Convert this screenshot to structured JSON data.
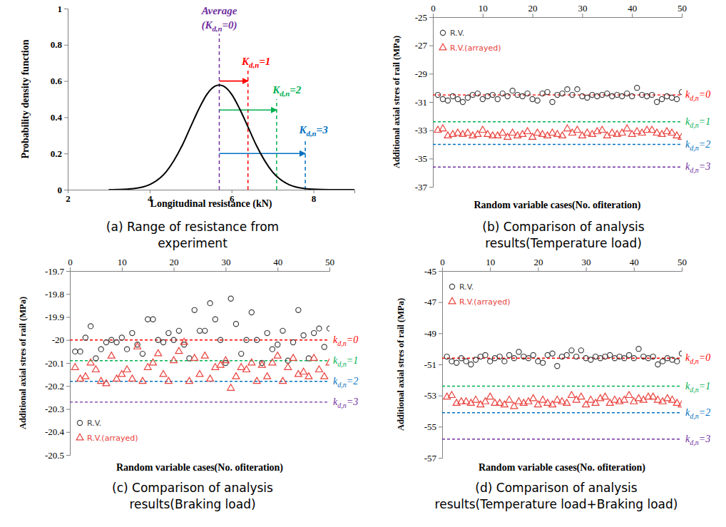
{
  "chart_data": [
    {
      "type": "line",
      "caption": [
        "(a) Range of resistance from",
        "experiment"
      ],
      "xlabel": "Longitudinal resistance (kN)",
      "ylabel": "Probability density function",
      "xlim": [
        2,
        9
      ],
      "xticks": [
        2,
        4,
        6,
        8
      ],
      "ylim": [
        0,
        1
      ],
      "yticks": [
        0,
        0.2,
        0.4,
        0.6,
        0.8,
        1
      ],
      "x": [
        3.0,
        3.2,
        3.6,
        4.0,
        4.4,
        4.8,
        5.0,
        5.2,
        5.4,
        5.6,
        5.7,
        5.8,
        6.0,
        6.2,
        6.4,
        6.6,
        7.0,
        7.4,
        7.8,
        8.2,
        8.6,
        9.0
      ],
      "series": [
        {
          "color": "#000000",
          "values": [
            0,
            0.001,
            0.006,
            0.028,
            0.098,
            0.247,
            0.347,
            0.445,
            0.527,
            0.572,
            0.578,
            0.572,
            0.527,
            0.445,
            0.347,
            0.247,
            0.098,
            0.028,
            0.006,
            0.001,
            0,
            0
          ]
        }
      ],
      "vlines": [
        {
          "x": 5.7,
          "y_top": 0.86,
          "color": "#7030a0"
        },
        {
          "x": 6.4,
          "y_top": 0.66,
          "color": "#ff0000"
        },
        {
          "x": 7.1,
          "y_top": 0.5,
          "color": "#00b050"
        },
        {
          "x": 7.8,
          "y_top": 0.28,
          "color": "#0070c0"
        }
      ],
      "arrows": [
        {
          "x_start": 5.7,
          "x_end": 6.4,
          "y": 0.6,
          "color": "#ff0000"
        },
        {
          "x_start": 5.7,
          "x_end": 7.1,
          "y": 0.44,
          "color": "#00b050"
        },
        {
          "x_start": 5.7,
          "x_end": 7.8,
          "y": 0.2,
          "color": "#0070c0"
        }
      ],
      "annotations": [
        {
          "text": "Average",
          "x": 5.7,
          "y": 0.97,
          "color": "#7030a0"
        },
        {
          "label": "(K",
          "label_sub": "d,n",
          "label_end": "=0)",
          "x": 5.7,
          "y": 0.89,
          "color": "#7030a0"
        },
        {
          "label": "K",
          "label_sub": "d,n",
          "label_end": "=1",
          "x": 6.6,
          "y": 0.69,
          "color": "#ff0000"
        },
        {
          "label": "K",
          "label_sub": "d,n",
          "label_end": "=2",
          "x": 7.35,
          "y": 0.53,
          "color": "#00b050"
        },
        {
          "label": "K",
          "label_sub": "d,n",
          "label_end": "=3",
          "x": 8.0,
          "y": 0.31,
          "color": "#0070c0"
        }
      ]
    },
    {
      "type": "scatter",
      "caption": [
        "(b) Comparison of analysis",
        "results(Temperature load)"
      ],
      "xlabel": "Random variable cases(No. ofiteration)",
      "ylabel": "Additional axial stres of rail (MPa)",
      "xlim": [
        0,
        50
      ],
      "xticks": [
        0,
        10,
        20,
        30,
        40,
        50
      ],
      "ylim": [
        -37,
        -25
      ],
      "yticks": [
        -37,
        -35,
        -33,
        -31,
        -29,
        -27,
        -25
      ],
      "legend": "upper left",
      "x": [
        1,
        2,
        3,
        4,
        5,
        6,
        7,
        8,
        9,
        10,
        11,
        12,
        13,
        14,
        15,
        16,
        17,
        18,
        19,
        20,
        21,
        22,
        23,
        24,
        25,
        26,
        27,
        28,
        29,
        30,
        31,
        32,
        33,
        34,
        35,
        36,
        37,
        38,
        39,
        40,
        41,
        42,
        43,
        44,
        45,
        46,
        47,
        48,
        49,
        50
      ],
      "series": [
        {
          "name": "R.V.",
          "color": "#404040",
          "marker": "circle",
          "values": [
            -30.5,
            -30.8,
            -30.9,
            -30.6,
            -30.8,
            -31.0,
            -30.7,
            -30.5,
            -30.4,
            -30.8,
            -30.6,
            -30.5,
            -30.8,
            -30.4,
            -30.6,
            -30.2,
            -30.5,
            -30.6,
            -30.4,
            -30.8,
            -30.9,
            -30.4,
            -30.3,
            -31.0,
            -30.5,
            -30.4,
            -30.1,
            -30.5,
            -30.1,
            -30.6,
            -30.7,
            -30.5,
            -30.6,
            -30.5,
            -30.4,
            -30.6,
            -30.5,
            -30.6,
            -30.4,
            -30.6,
            -30.0,
            -30.5,
            -30.6,
            -30.5,
            -31.0,
            -30.8,
            -30.6,
            -30.7,
            -30.8,
            -30.3
          ]
        },
        {
          "name": "R.V.(arrayed)",
          "color": "#e8413c",
          "marker": "triangle",
          "values": [
            -33.0,
            -32.9,
            -33.4,
            -33.3,
            -33.2,
            -33.3,
            -33.2,
            -33.4,
            -33.3,
            -33.0,
            -33.3,
            -33.4,
            -33.4,
            -33.2,
            -33.5,
            -33.2,
            -33.4,
            -33.3,
            -33.1,
            -33.5,
            -33.2,
            -33.3,
            -33.4,
            -33.2,
            -33.3,
            -33.4,
            -32.9,
            -33.2,
            -33.0,
            -33.4,
            -33.2,
            -33.3,
            -33.1,
            -33.0,
            -33.4,
            -33.2,
            -33.3,
            -33.2,
            -32.9,
            -33.3,
            -33.1,
            -33.2,
            -33.0,
            -33.0,
            -33.2,
            -33.3,
            -33.1,
            -33.2,
            -33.4,
            -33.5
          ]
        }
      ],
      "reference_lines": [
        {
          "y": -30.5,
          "color": "#ff0000",
          "label": "k",
          "label_sub": "d,n",
          "label_end": "=0"
        },
        {
          "y": -32.4,
          "color": "#00b050",
          "label": "k",
          "label_sub": "d,n",
          "label_end": "=1"
        },
        {
          "y": -34.0,
          "color": "#0070c0",
          "label": "k",
          "label_sub": "d,n",
          "label_end": "=2"
        },
        {
          "y": -35.6,
          "color": "#7030a0",
          "label": "k",
          "label_sub": "d,n",
          "label_end": "=3"
        }
      ]
    },
    {
      "type": "scatter",
      "caption": [
        "(c) Comparison of analysis",
        "results(Braking load)"
      ],
      "xlabel": "Random variable cases(No. ofiteration)",
      "ylabel": "Additional axial stres of rail (MPa)",
      "xlim": [
        0,
        50
      ],
      "xticks": [
        0,
        10,
        20,
        30,
        40,
        50
      ],
      "ylim": [
        -20.5,
        -19.7
      ],
      "yticks": [
        -20.5,
        -20.4,
        -20.3,
        -20.2,
        -20.1,
        -20.0,
        -19.9,
        -19.8,
        -19.7
      ],
      "legend": "lower left",
      "x": [
        1,
        2,
        3,
        4,
        5,
        6,
        7,
        8,
        9,
        10,
        11,
        12,
        13,
        14,
        15,
        16,
        17,
        18,
        19,
        20,
        21,
        22,
        23,
        24,
        25,
        26,
        27,
        28,
        29,
        30,
        31,
        32,
        33,
        34,
        35,
        36,
        37,
        38,
        39,
        40,
        41,
        42,
        43,
        44,
        45,
        46,
        47,
        48,
        49,
        50
      ],
      "series": [
        {
          "name": "R.V.",
          "color": "#404040",
          "marker": "circle",
          "values": [
            -20.05,
            -20.05,
            -19.99,
            -19.94,
            -20.08,
            -20.04,
            -20.01,
            -20.0,
            -20.01,
            -19.99,
            -20.04,
            -19.97,
            -20.02,
            -20.06,
            -19.91,
            -19.91,
            -20.0,
            -20.01,
            -19.97,
            -20.0,
            -19.96,
            -20.02,
            -20.08,
            -19.87,
            -19.96,
            -19.96,
            -19.84,
            -19.91,
            -20.0,
            -20.1,
            -19.82,
            -19.93,
            -20.06,
            -20.0,
            -19.88,
            -20.0,
            -20.1,
            -19.97,
            -20.04,
            -20.02,
            -19.96,
            -20.09,
            -20.01,
            -19.87,
            -19.98,
            -20.08,
            -19.97,
            -19.95,
            -20.03,
            -19.95
          ]
        },
        {
          "name": "R.V.(arrayed)",
          "color": "#e8413c",
          "marker": "triangle",
          "values": [
            -20.12,
            -20.17,
            -20.16,
            -20.1,
            -20.13,
            -20.18,
            -20.19,
            -20.07,
            -20.17,
            -20.15,
            -20.13,
            -20.17,
            -20.03,
            -20.18,
            -20.12,
            -20.1,
            -20.06,
            -20.15,
            -20.18,
            -20.09,
            -20.05,
            -20.01,
            -20.18,
            -20.08,
            -20.15,
            -20.07,
            -20.17,
            -20.12,
            -20.11,
            -20.09,
            -20.21,
            -20.16,
            -20.12,
            -20.13,
            -20.1,
            -20.18,
            -20.11,
            -20.16,
            -20.1,
            -20.07,
            -20.18,
            -20.12,
            -20.08,
            -20.15,
            -20.14,
            -20.16,
            -20.08,
            -20.13,
            -20.16,
            -20.1
          ]
        }
      ],
      "reference_lines": [
        {
          "y": -20.0,
          "color": "#ff0000",
          "label": "k",
          "label_sub": "d,n",
          "label_end": "=0"
        },
        {
          "y": -20.09,
          "color": "#00b050",
          "label": "k",
          "label_sub": "d,n",
          "label_end": "=1"
        },
        {
          "y": -20.18,
          "color": "#0070c0",
          "label": "k",
          "label_sub": "d,n",
          "label_end": "=2"
        },
        {
          "y": -20.27,
          "color": "#7030a0",
          "label": "k",
          "label_sub": "d,n",
          "label_end": "=3"
        }
      ]
    },
    {
      "type": "scatter",
      "caption": [
        "(d) Comparison of analysis",
        "results(Temperature load+Braking load)"
      ],
      "xlabel": "Random variable cases(No. ofiteration)",
      "ylabel": "Additional axial stres of rail (MPa)",
      "xlim": [
        0,
        50
      ],
      "xticks": [
        0,
        10,
        20,
        30,
        40,
        50
      ],
      "ylim": [
        -57,
        -45
      ],
      "yticks": [
        -57,
        -55,
        -53,
        -51,
        -49,
        -47,
        -45
      ],
      "legend": "upper left",
      "x": [
        1,
        2,
        3,
        4,
        5,
        6,
        7,
        8,
        9,
        10,
        11,
        12,
        13,
        14,
        15,
        16,
        17,
        18,
        19,
        20,
        21,
        22,
        23,
        24,
        25,
        26,
        27,
        28,
        29,
        30,
        31,
        32,
        33,
        34,
        35,
        36,
        37,
        38,
        39,
        40,
        41,
        42,
        43,
        44,
        45,
        46,
        47,
        48,
        49,
        50
      ],
      "series": [
        {
          "name": "R.V.",
          "color": "#404040",
          "marker": "circle",
          "values": [
            -50.5,
            -50.8,
            -50.9,
            -50.6,
            -50.8,
            -51.0,
            -50.7,
            -50.5,
            -50.4,
            -50.8,
            -50.6,
            -50.5,
            -50.8,
            -50.4,
            -50.6,
            -50.2,
            -50.5,
            -50.6,
            -50.4,
            -50.8,
            -50.9,
            -50.4,
            -50.3,
            -51.1,
            -50.5,
            -50.4,
            -50.1,
            -50.5,
            -50.1,
            -50.6,
            -50.7,
            -50.5,
            -50.6,
            -50.5,
            -50.4,
            -50.6,
            -50.5,
            -50.6,
            -50.4,
            -50.6,
            -50.0,
            -50.5,
            -50.6,
            -50.5,
            -51.0,
            -50.8,
            -50.6,
            -50.7,
            -50.8,
            -50.3
          ]
        },
        {
          "name": "R.V.(arrayed)",
          "color": "#e8413c",
          "marker": "triangle",
          "values": [
            -53.1,
            -53.0,
            -53.5,
            -53.4,
            -53.4,
            -53.5,
            -53.3,
            -53.6,
            -53.4,
            -53.1,
            -53.5,
            -53.5,
            -53.6,
            -53.3,
            -53.7,
            -53.4,
            -53.5,
            -53.4,
            -53.2,
            -53.6,
            -53.3,
            -53.5,
            -53.6,
            -53.3,
            -53.4,
            -53.5,
            -53.0,
            -53.3,
            -53.1,
            -53.6,
            -53.3,
            -53.5,
            -53.2,
            -53.1,
            -53.5,
            -53.3,
            -53.4,
            -53.3,
            -53.0,
            -53.4,
            -53.2,
            -53.3,
            -53.1,
            -53.1,
            -53.3,
            -53.4,
            -53.2,
            -53.3,
            -53.5,
            -53.6
          ]
        }
      ],
      "reference_lines": [
        {
          "y": -50.6,
          "color": "#ff0000",
          "label": "k",
          "label_sub": "d,n",
          "label_end": "=0"
        },
        {
          "y": -52.4,
          "color": "#00b050",
          "label": "k",
          "label_sub": "d,n",
          "label_end": "=1"
        },
        {
          "y": -54.1,
          "color": "#0070c0",
          "label": "k",
          "label_sub": "d,n",
          "label_end": "=2"
        },
        {
          "y": -55.8,
          "color": "#7030a0",
          "label": "k",
          "label_sub": "d,n",
          "label_end": "=3"
        }
      ]
    }
  ]
}
